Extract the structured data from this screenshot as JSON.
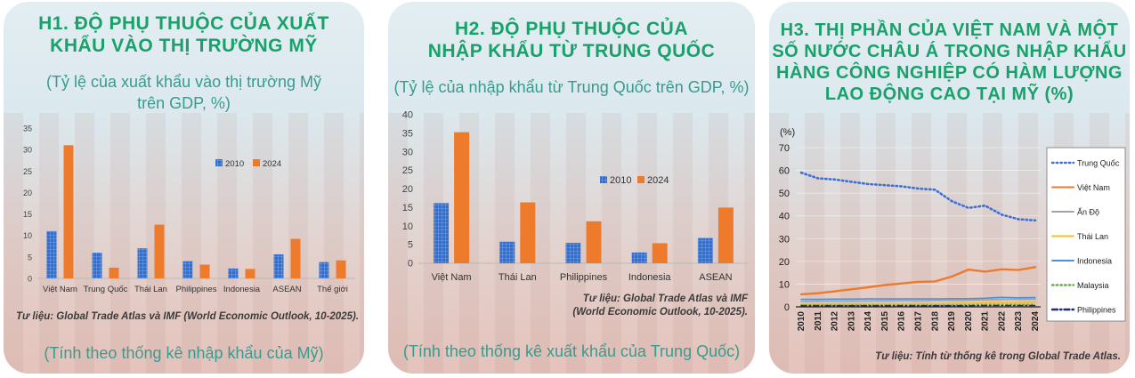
{
  "colors": {
    "c2010": "#2f6fd1",
    "c2024": "#ee7a2c",
    "title": "#1aa06b",
    "subtitle": "#3a9a8e"
  },
  "panels": [
    {
      "title_line1": "H1. ĐỘ PHỤ THUỘC CỦA XUẤT",
      "title_line2": "KHẨU VÀO THỊ TRƯỜNG MỸ",
      "subtitle_line1": "(Tỷ lệ của xuất khẩu vào thị trường Mỹ",
      "subtitle_line2": "trên GDP, %)",
      "source": "Tư liệu: Global Trade Atlas và IMF (World Economic Outlook, 10-2025).",
      "note": "(Tính theo thống kê nhập khẩu của Mỹ)"
    },
    {
      "title_line1": "H2. ĐỘ PHỤ THUỘC CỦA",
      "title_line2": "NHẬP KHẨU TỪ TRUNG QUỐC",
      "subtitle_line1": "(Tỷ lệ của nhập khẩu từ Trung Quốc trên GDP, %)",
      "source_line1": "Tư liệu: Global Trade Atlas và IMF",
      "source_line2": "(World Economic Outlook, 10-2025).",
      "note": "(Tính theo thống kê xuất khẩu của Trung Quốc)"
    },
    {
      "title_line1": "H3. THỊ PHẦN CỦA VIỆT NAM VÀ MỘT",
      "title_line2": "SỐ NƯỚC CHÂU Á TRONG NHẬP KHẨU",
      "title_line3": "HÀNG CÔNG NGHIỆP CÓ HÀM LƯỢNG",
      "title_line4": "LAO ĐỘNG CAO TẠI MỸ (%)",
      "source": "Tư liệu: Tính từ thống kê trong Global Trade Atlas."
    }
  ],
  "chart_data": [
    {
      "type": "bar",
      "categories": [
        "Việt Nam",
        "Trung Quốc",
        "Thái Lan",
        "Philippines",
        "Indonesia",
        "ASEAN",
        "Thế giới"
      ],
      "series": [
        {
          "name": "2010",
          "values": [
            11,
            6,
            7,
            4,
            2.3,
            5.6,
            3.8
          ]
        },
        {
          "name": "2024",
          "values": [
            31,
            2.5,
            12.5,
            3.2,
            2.2,
            9.2,
            4.2
          ]
        }
      ],
      "ylim": [
        0,
        35
      ],
      "yticks": [
        0,
        5,
        10,
        15,
        20,
        25,
        30,
        35
      ],
      "legend": "right"
    },
    {
      "type": "bar",
      "categories": [
        "Việt Nam",
        "Thái Lan",
        "Philippines",
        "Indonesia",
        "ASEAN"
      ],
      "series": [
        {
          "name": "2010",
          "values": [
            16.2,
            5.8,
            5.5,
            2.9,
            6.8
          ]
        },
        {
          "name": "2024",
          "values": [
            35.3,
            16.4,
            11.3,
            5.4,
            15
          ]
        }
      ],
      "ylim": [
        0,
        40
      ],
      "yticks": [
        0,
        5,
        10,
        15,
        20,
        25,
        30,
        35,
        40
      ],
      "legend": "top-left"
    },
    {
      "type": "line",
      "ylabel": "(%)",
      "x": [
        "2010",
        "2011",
        "2012",
        "2013",
        "2014",
        "2015",
        "2016",
        "2017",
        "2018",
        "2019",
        "2020",
        "2021",
        "2022",
        "2023",
        "2024"
      ],
      "ylim": [
        0,
        70
      ],
      "yticks": [
        0,
        10,
        20,
        30,
        40,
        50,
        60,
        70
      ],
      "legend": "right",
      "series": [
        {
          "name": "Trung Quốc",
          "color": "#3f6fd0",
          "style": "dotted",
          "values": [
            59,
            56.5,
            56,
            55,
            54,
            53.5,
            53,
            52,
            51.5,
            46.5,
            43.5,
            44.5,
            40.5,
            38.5,
            38
          ]
        },
        {
          "name": "Việt Nam",
          "color": "#ee7a2c",
          "style": "solid",
          "values": [
            5.5,
            6,
            6.8,
            7.7,
            8.6,
            9.6,
            10.3,
            11,
            11.2,
            13.3,
            16.4,
            15.5,
            16.5,
            16.2,
            17.5
          ]
        },
        {
          "name": "Ấn Độ",
          "color": "#a3a3a3",
          "style": "solid",
          "values": [
            2.4,
            2.5,
            2.5,
            2.6,
            2.6,
            2.7,
            2.7,
            2.7,
            2.8,
            2.9,
            2.9,
            3.1,
            3.3,
            3.3,
            3.4
          ]
        },
        {
          "name": "Thái Lan",
          "color": "#f2c21b",
          "style": "solid",
          "values": [
            1.2,
            1.2,
            1.3,
            1.3,
            1.3,
            1.3,
            1.3,
            1.4,
            1.4,
            1.5,
            1.6,
            1.7,
            1.8,
            1.8,
            1.9
          ]
        },
        {
          "name": "Indonesia",
          "color": "#4a93d9",
          "style": "solid",
          "values": [
            3.3,
            3.3,
            3.4,
            3.4,
            3.5,
            3.5,
            3.5,
            3.5,
            3.5,
            3.6,
            3.6,
            3.8,
            4.2,
            4,
            4.1
          ]
        },
        {
          "name": "Malaysia",
          "color": "#6aab4a",
          "style": "dotted",
          "values": [
            0.8,
            0.8,
            0.8,
            0.8,
            0.8,
            0.8,
            0.8,
            0.8,
            0.8,
            0.8,
            0.9,
            1,
            1,
            1,
            1
          ]
        },
        {
          "name": "Philippines",
          "color": "#1c2f6e",
          "style": "dashdot",
          "values": [
            0.5,
            0.5,
            0.5,
            0.5,
            0.5,
            0.5,
            0.5,
            0.5,
            0.5,
            0.5,
            0.5,
            0.6,
            0.6,
            0.6,
            0.6
          ]
        }
      ]
    }
  ]
}
